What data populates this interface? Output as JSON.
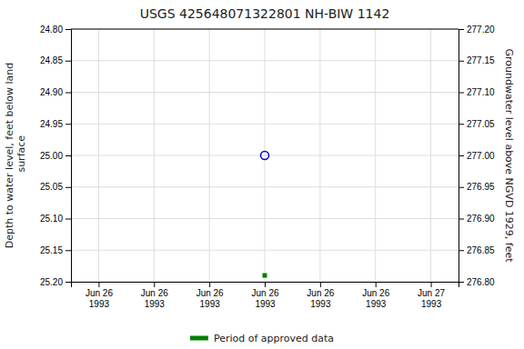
{
  "chart_data": {
    "type": "scatter",
    "title": "USGS 425648071322801 NH-BIW 1142",
    "y_label": "Depth to water level, feet below land\n surface",
    "y2_label": "Groundwater level above NGVD 1929, feet",
    "categories": [
      "Jun 26\n1993",
      "Jun 26\n1993",
      "Jun 26\n1993",
      "Jun 26\n1993",
      "Jun 26\n1993",
      "Jun 26\n1993",
      "Jun 27\n1993"
    ],
    "ylim": [
      25.2,
      24.8
    ],
    "yticks": [
      {
        "value": 24.8,
        "label": "24.80"
      },
      {
        "value": 24.85,
        "label": "24.85"
      },
      {
        "value": 24.9,
        "label": "24.90"
      },
      {
        "value": 24.95,
        "label": "24.95"
      },
      {
        "value": 25.0,
        "label": "25.00"
      },
      {
        "value": 25.05,
        "label": "25.05"
      },
      {
        "value": 25.1,
        "label": "25.10"
      },
      {
        "value": 25.15,
        "label": "25.15"
      },
      {
        "value": 25.2,
        "label": "25.20"
      }
    ],
    "y2lim": [
      276.8,
      277.2
    ],
    "y2ticks": [
      {
        "value": 277.2,
        "label": "277.20"
      },
      {
        "value": 277.15,
        "label": "277.15"
      },
      {
        "value": 277.1,
        "label": "277.10"
      },
      {
        "value": 277.05,
        "label": "277.05"
      },
      {
        "value": 277.0,
        "label": "277.00"
      },
      {
        "value": 276.95,
        "label": "276.95"
      },
      {
        "value": 276.9,
        "label": "276.90"
      },
      {
        "value": 276.85,
        "label": "276.85"
      },
      {
        "value": 276.8,
        "label": "276.80"
      }
    ],
    "grid": true,
    "legend": "bottom",
    "series": [
      {
        "color": "#0000cc",
        "marker": "circle-open",
        "values": [
          null,
          null,
          null,
          25.0,
          null,
          null,
          null
        ]
      },
      {
        "name": "Period of approved data",
        "color": "#008000",
        "marker": "square",
        "values": [
          null,
          null,
          null,
          25.19,
          null,
          null,
          null
        ]
      }
    ]
  }
}
